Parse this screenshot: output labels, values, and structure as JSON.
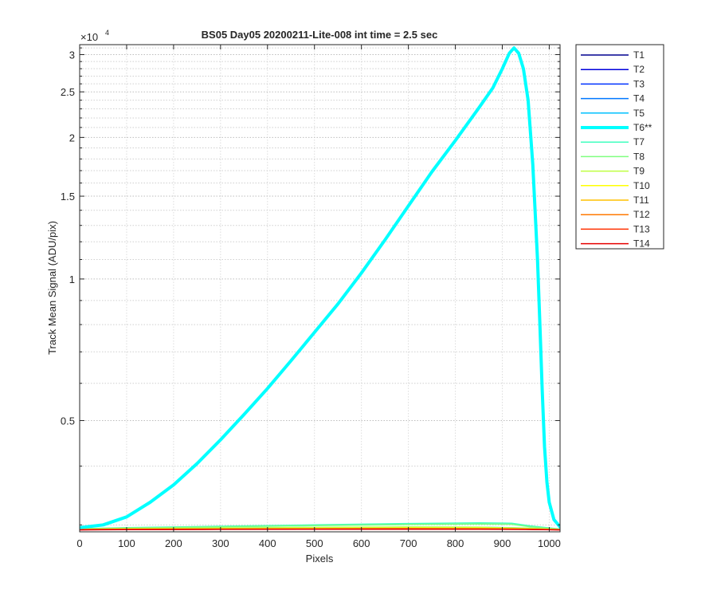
{
  "chart_data": {
    "type": "line",
    "title": "BS05 Day05 20200211-Lite-008 int time = 2.5 sec",
    "xlabel": "Pixels",
    "ylabel": "Track Mean Signal (ADU/pix)",
    "y_exponent_label": "×10",
    "y_exponent_power": "4",
    "yscale": "log",
    "xlim": [
      0,
      1023
    ],
    "ylim": [
      2900,
      31500
    ],
    "x_ticks": [
      0,
      100,
      200,
      300,
      400,
      500,
      600,
      700,
      800,
      900,
      1000
    ],
    "x_tick_labels": [
      "0",
      "100",
      "200",
      "300",
      "400",
      "500",
      "600",
      "700",
      "800",
      "900",
      "1000"
    ],
    "y_ticks": [
      5000,
      10000,
      15000,
      20000,
      25000,
      30000
    ],
    "y_tick_labels": [
      "0.5",
      "1",
      "1.5",
      "2",
      "2.5",
      "3"
    ],
    "grid": true,
    "legend_position": "outside-right",
    "series": [
      {
        "name": "T1",
        "color": "#00008f",
        "width": 1.5,
        "x": [
          0,
          100,
          300,
          500,
          700,
          850,
          950,
          1023
        ],
        "y": [
          2930,
          2935,
          2938,
          2940,
          2942,
          2941,
          2938,
          2932
        ]
      },
      {
        "name": "T2",
        "color": "#0000dc",
        "width": 1.5,
        "x": [
          0,
          100,
          300,
          500,
          700,
          850,
          950,
          1023
        ],
        "y": [
          2932,
          2937,
          2940,
          2942,
          2944,
          2943,
          2940,
          2933
        ]
      },
      {
        "name": "T3",
        "color": "#0032ff",
        "width": 1.5,
        "x": [
          0,
          100,
          300,
          500,
          700,
          850,
          950,
          1023
        ],
        "y": [
          2934,
          2939,
          2942,
          2945,
          2947,
          2946,
          2942,
          2934
        ]
      },
      {
        "name": "T4",
        "color": "#0078ff",
        "width": 1.5,
        "x": [
          0,
          100,
          300,
          500,
          700,
          850,
          950,
          1023
        ],
        "y": [
          2936,
          2942,
          2946,
          2950,
          2953,
          2952,
          2946,
          2935
        ]
      },
      {
        "name": "T5",
        "color": "#00c0ff",
        "width": 1.5,
        "x": [
          0,
          100,
          300,
          500,
          700,
          850,
          950,
          1023
        ],
        "y": [
          2940,
          2948,
          2955,
          2962,
          2968,
          2966,
          2955,
          2937
        ]
      },
      {
        "name": "T6**",
        "color": "#00ffff",
        "width": 4,
        "x": [
          0,
          50,
          100,
          150,
          200,
          250,
          300,
          350,
          400,
          450,
          500,
          550,
          600,
          650,
          700,
          750,
          800,
          850,
          880,
          900,
          915,
          925,
          935,
          945,
          955,
          965,
          975,
          980,
          985,
          990,
          995,
          1000,
          1010,
          1023
        ],
        "y": [
          2960,
          3000,
          3120,
          3350,
          3650,
          4050,
          4550,
          5150,
          5850,
          6700,
          7700,
          8850,
          10300,
          12100,
          14300,
          16900,
          19700,
          23100,
          25500,
          28000,
          30200,
          31000,
          30200,
          28000,
          24000,
          17500,
          11000,
          8000,
          5800,
          4400,
          3700,
          3350,
          3080,
          2970
        ]
      },
      {
        "name": "T7",
        "color": "#40ffbf",
        "width": 1.5,
        "x": [
          0,
          100,
          300,
          500,
          700,
          850,
          920,
          960,
          1023
        ],
        "y": [
          2945,
          2960,
          2980,
          3000,
          3020,
          3030,
          3025,
          2985,
          2940
        ]
      },
      {
        "name": "T8",
        "color": "#80ff80",
        "width": 1.5,
        "x": [
          0,
          100,
          300,
          500,
          700,
          850,
          920,
          960,
          1023
        ],
        "y": [
          2942,
          2955,
          2972,
          2988,
          3005,
          3012,
          3008,
          2972,
          2938
        ]
      },
      {
        "name": "T9",
        "color": "#bfff40",
        "width": 1.5,
        "x": [
          0,
          100,
          300,
          500,
          700,
          850,
          950,
          1023
        ],
        "y": [
          2938,
          2946,
          2955,
          2963,
          2970,
          2968,
          2952,
          2935
        ]
      },
      {
        "name": "T10",
        "color": "#ffff00",
        "width": 1.5,
        "x": [
          0,
          100,
          300,
          500,
          700,
          850,
          950,
          1023
        ],
        "y": [
          2935,
          2941,
          2946,
          2950,
          2954,
          2952,
          2944,
          2932
        ]
      },
      {
        "name": "T11",
        "color": "#ffc000",
        "width": 1.5,
        "x": [
          0,
          100,
          300,
          500,
          700,
          850,
          950,
          1023
        ],
        "y": [
          2933,
          2938,
          2942,
          2945,
          2948,
          2946,
          2940,
          2931
        ]
      },
      {
        "name": "T12",
        "color": "#ff7800",
        "width": 1.5,
        "x": [
          0,
          100,
          300,
          500,
          700,
          850,
          950,
          1023
        ],
        "y": [
          2932,
          2936,
          2939,
          2942,
          2944,
          2943,
          2938,
          2930
        ]
      },
      {
        "name": "T13",
        "color": "#ff3000",
        "width": 1.5,
        "x": [
          0,
          100,
          300,
          500,
          700,
          850,
          950,
          1023
        ],
        "y": [
          2930,
          2934,
          2937,
          2939,
          2941,
          2940,
          2936,
          2929
        ]
      },
      {
        "name": "T14",
        "color": "#e60000",
        "width": 1.5,
        "x": [
          0,
          100,
          300,
          500,
          700,
          850,
          950,
          1023
        ],
        "y": [
          2929,
          2932,
          2935,
          2937,
          2938,
          2937,
          2934,
          2928
        ]
      }
    ]
  }
}
